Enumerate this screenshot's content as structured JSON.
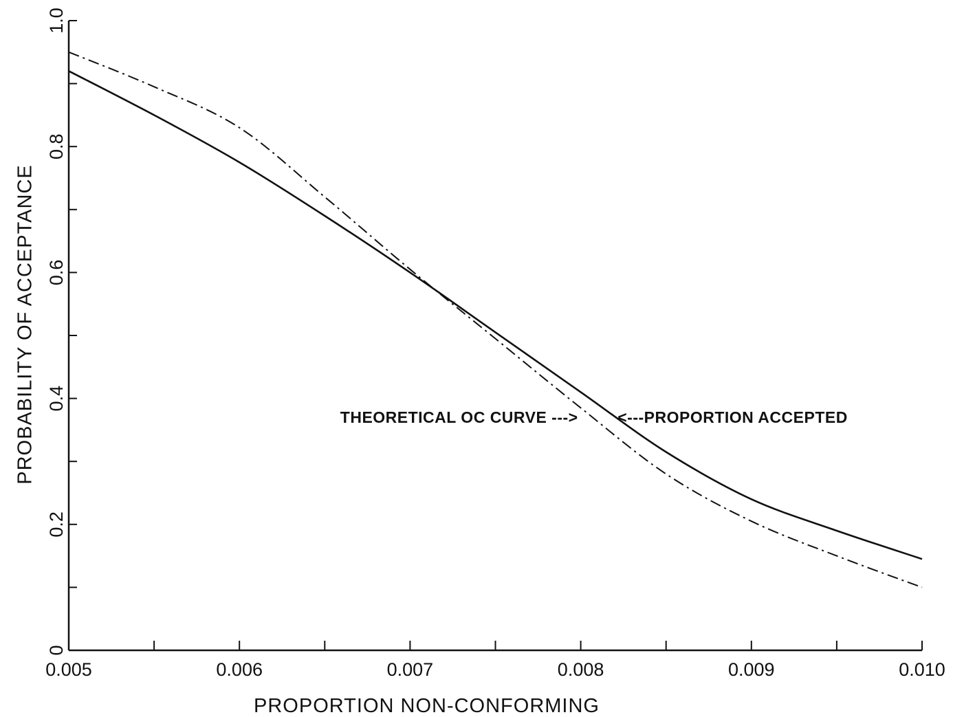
{
  "chart_data": {
    "type": "line",
    "title": "",
    "xlabel": "PROPORTION NON-CONFORMING",
    "ylabel": "PROBABILITY OF ACCEPTANCE",
    "xlim": [
      0.005,
      0.01
    ],
    "ylim": [
      0,
      1.0
    ],
    "x_ticks": [
      0.005,
      0.0055,
      0.006,
      0.0065,
      0.007,
      0.0075,
      0.008,
      0.0085,
      0.009,
      0.0095,
      0.01
    ],
    "x_tick_labels": [
      {
        "x": 0.005,
        "label": "0.005"
      },
      {
        "x": 0.006,
        "label": "0.006"
      },
      {
        "x": 0.007,
        "label": "0.007"
      },
      {
        "x": 0.008,
        "label": "0.008"
      },
      {
        "x": 0.009,
        "label": "0.009"
      },
      {
        "x": 0.01,
        "label": "0.010"
      }
    ],
    "y_ticks": [
      0,
      0.1,
      0.2,
      0.3,
      0.4,
      0.5,
      0.6,
      0.7,
      0.8,
      0.9,
      1.0
    ],
    "y_tick_labels": [
      {
        "y": 0,
        "label": "0"
      },
      {
        "y": 0.2,
        "label": "0.2"
      },
      {
        "y": 0.4,
        "label": "0.4"
      },
      {
        "y": 0.6,
        "label": "0.6"
      },
      {
        "y": 0.8,
        "label": "0.8"
      },
      {
        "y": 1.0,
        "label": "1.0"
      }
    ],
    "grid": false,
    "series": [
      {
        "style": "solid",
        "x": [
          0.005,
          0.0055,
          0.006,
          0.0065,
          0.007,
          0.0075,
          0.008,
          0.0085,
          0.009,
          0.0095,
          0.01
        ],
        "y": [
          0.92,
          0.85,
          0.775,
          0.69,
          0.6,
          0.505,
          0.41,
          0.315,
          0.24,
          0.19,
          0.145
        ]
      },
      {
        "style": "dashdot",
        "x": [
          0.005,
          0.0055,
          0.006,
          0.0065,
          0.007,
          0.0075,
          0.008,
          0.0085,
          0.009,
          0.0095,
          0.01
        ],
        "y": [
          0.95,
          0.895,
          0.83,
          0.72,
          0.605,
          0.495,
          0.385,
          0.28,
          0.205,
          0.15,
          0.1
        ]
      }
    ],
    "annotations": [
      {
        "text": "THEORETICAL OC CURVE --->",
        "points_to": "dashdot",
        "x": 0.008,
        "y": 0.37
      },
      {
        "text": "<---PROPORTION ACCEPTED",
        "points_to": "solid",
        "x": 0.0082,
        "y": 0.37
      }
    ]
  }
}
